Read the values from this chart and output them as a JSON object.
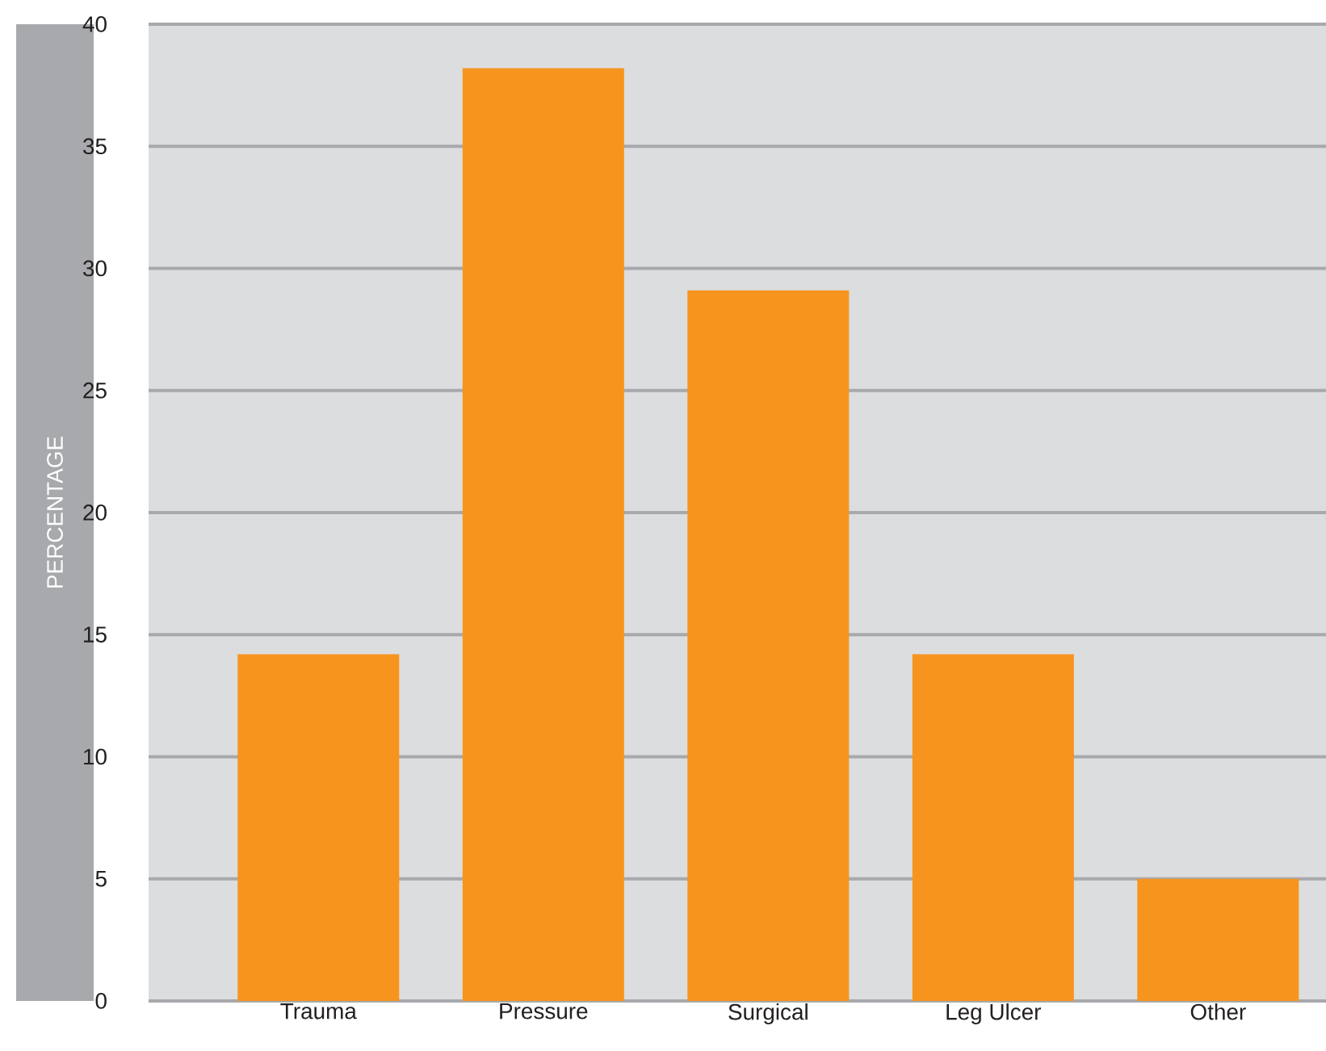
{
  "chart_data": {
    "type": "bar",
    "ylabel": "PERCENTAGE",
    "categories": [
      "Trauma",
      "Pressure",
      "Surgical",
      "Leg Ulcer",
      "Other"
    ],
    "values": [
      14.2,
      38.2,
      29.1,
      14.2,
      5.0
    ],
    "color": "#f7941d",
    "ylim": [
      0,
      40
    ],
    "yticks": [
      0,
      5,
      10,
      15,
      20,
      25,
      30,
      35,
      40
    ],
    "grid": "y"
  }
}
